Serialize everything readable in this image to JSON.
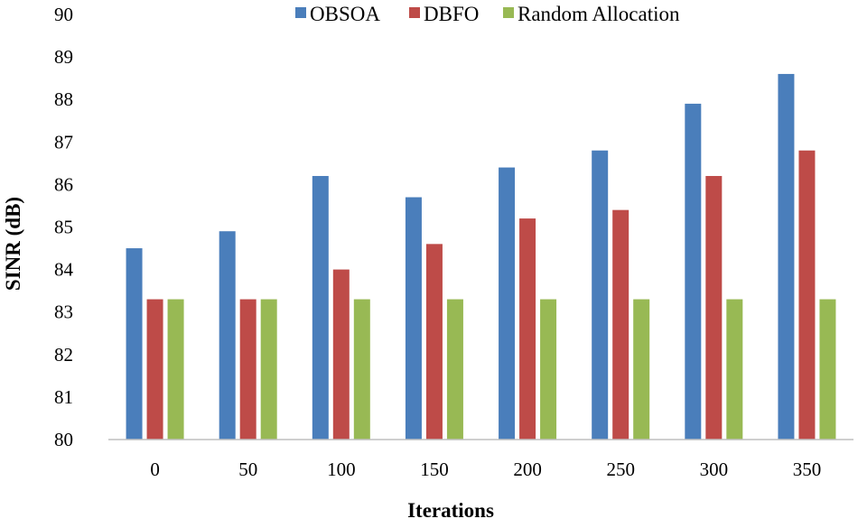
{
  "chart_data": {
    "type": "bar",
    "title": "",
    "xlabel": "Iterations",
    "ylabel": "SINR (dB)",
    "categories": [
      "0",
      "50",
      "100",
      "150",
      "200",
      "250",
      "300",
      "350"
    ],
    "ylim": [
      80,
      90
    ],
    "yticks": [
      80,
      81,
      82,
      83,
      84,
      85,
      86,
      87,
      88,
      89,
      90
    ],
    "grid": false,
    "legend_position": "top",
    "series": [
      {
        "name": "OBSOA",
        "color": "#4a7ebb",
        "values": [
          84.5,
          84.9,
          86.2,
          85.7,
          86.4,
          86.8,
          87.9,
          88.6
        ]
      },
      {
        "name": "DBFO",
        "color": "#be4b48",
        "values": [
          83.3,
          83.3,
          84.0,
          84.6,
          85.2,
          85.4,
          86.2,
          86.8
        ]
      },
      {
        "name": "Random Allocation",
        "color": "#98b954",
        "values": [
          83.3,
          83.3,
          83.3,
          83.3,
          83.3,
          83.3,
          83.3,
          83.3
        ]
      }
    ]
  }
}
